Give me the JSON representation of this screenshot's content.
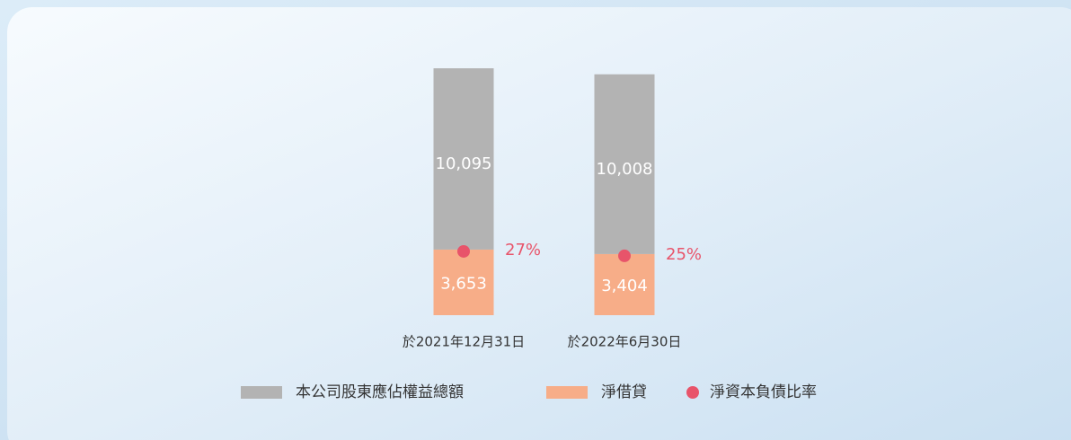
{
  "chart_data": {
    "type": "bar",
    "stacked": true,
    "categories": [
      "於2021年12月31日",
      "於2022年6月30日"
    ],
    "series": [
      {
        "name": "本公司股東應佔權益總額",
        "color": "#b3b3b3",
        "values": [
          10095,
          10008
        ],
        "value_labels": [
          "10,095",
          "10,008"
        ]
      },
      {
        "name": "淨借貸",
        "color": "#f7ad88",
        "values": [
          3653,
          3404
        ],
        "value_labels": [
          "3,653",
          "3,404"
        ]
      },
      {
        "name": "淨資本負債比率",
        "type": "scatter",
        "color": "#e8546a",
        "values": [
          27,
          25
        ],
        "value_labels": [
          "27%",
          "25%"
        ]
      }
    ],
    "legend": "bottom"
  }
}
